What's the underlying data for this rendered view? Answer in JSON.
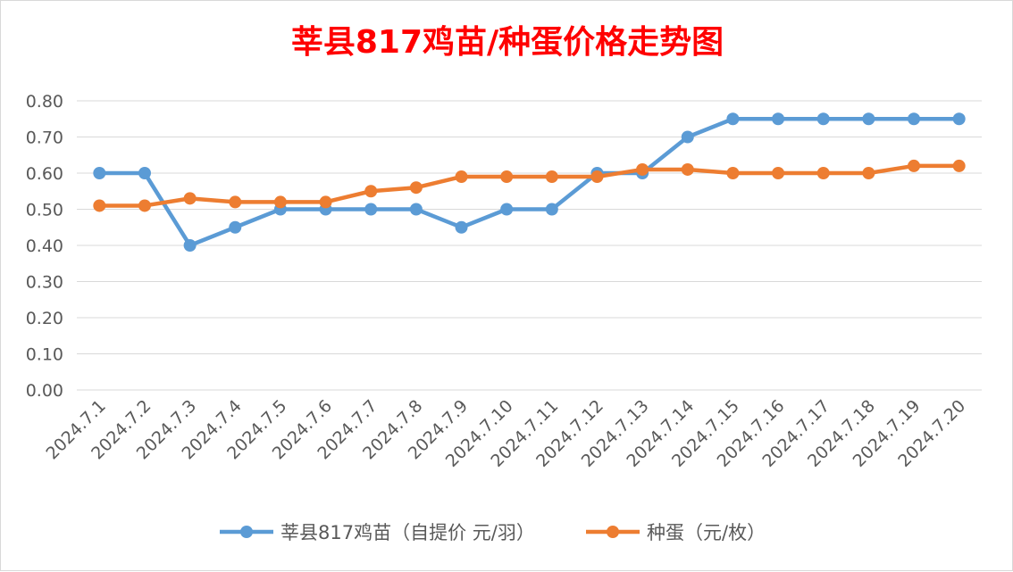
{
  "chart_data": {
    "type": "line",
    "title": "莘县817鸡苗/种蛋价格走势图",
    "xlabel": "",
    "ylabel": "",
    "ylim": [
      0,
      0.8
    ],
    "yticks": [
      "0.00",
      "0.10",
      "0.20",
      "0.30",
      "0.40",
      "0.50",
      "0.60",
      "0.70",
      "0.80"
    ],
    "categories": [
      "2024.7.1",
      "2024.7.2",
      "2024.7.3",
      "2024.7.4",
      "2024.7.5",
      "2024.7.6",
      "2024.7.7",
      "2024.7.8",
      "2024.7.9",
      "2024.7.10",
      "2024.7.11",
      "2024.7.12",
      "2024.7.13",
      "2024.7.14",
      "2024.7.15",
      "2024.7.16",
      "2024.7.17",
      "2024.7.18",
      "2024.7.19",
      "2024.7.20"
    ],
    "series": [
      {
        "name": "莘县817鸡苗（自提价 元/羽）",
        "color": "#5b9bd5",
        "values": [
          0.6,
          0.6,
          0.4,
          0.45,
          0.5,
          0.5,
          0.5,
          0.5,
          0.45,
          0.5,
          0.5,
          0.6,
          0.6,
          0.7,
          0.75,
          0.75,
          0.75,
          0.75,
          0.75,
          0.75
        ]
      },
      {
        "name": "种蛋（元/枚）",
        "color": "#ed7d31",
        "values": [
          0.51,
          0.51,
          0.53,
          0.52,
          0.52,
          0.52,
          0.55,
          0.56,
          0.59,
          0.59,
          0.59,
          0.59,
          0.61,
          0.61,
          0.6,
          0.6,
          0.6,
          0.6,
          0.62,
          0.62
        ]
      }
    ],
    "grid": true,
    "legend_position": "bottom"
  }
}
